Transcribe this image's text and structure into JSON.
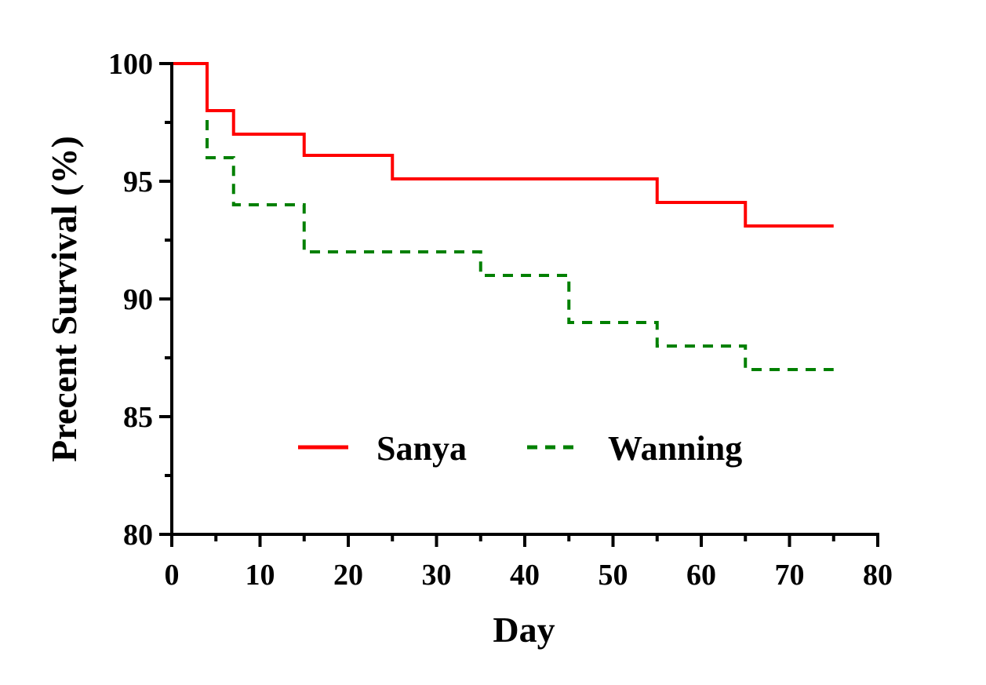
{
  "chart_data": {
    "type": "line",
    "step": true,
    "title": "",
    "xlabel": "Day",
    "ylabel": "Precent  Survival (%)",
    "xlim": [
      0,
      80
    ],
    "ylim": [
      80,
      100
    ],
    "x_ticks": [
      0,
      10,
      20,
      30,
      40,
      50,
      60,
      70,
      80
    ],
    "x_tick_labels": [
      "0",
      "10",
      "20",
      "30",
      "40",
      "50",
      "60",
      "70",
      "80"
    ],
    "y_ticks": [
      80,
      85,
      90,
      95,
      100
    ],
    "y_tick_labels": [
      "80",
      "85",
      "90",
      "95",
      "100"
    ],
    "y_minor_ticks": [
      82.5,
      87.5,
      92.5,
      97.5
    ],
    "grid": false,
    "legend_position": "lower-center",
    "series": [
      {
        "name": "Sanya",
        "color": "#ff0000",
        "style": "solid",
        "x": [
          0,
          4,
          7,
          15,
          25,
          55,
          65,
          75
        ],
        "y": [
          100,
          98,
          97,
          96.1,
          95.1,
          94.1,
          93.1,
          93.1
        ]
      },
      {
        "name": "Wanning",
        "color": "#008000",
        "style": "dashed",
        "x": [
          4,
          4,
          7,
          15,
          35,
          45,
          55,
          65,
          75
        ],
        "y": [
          97.6,
          96,
          94,
          92,
          91,
          89,
          88,
          87,
          87
        ]
      }
    ]
  }
}
